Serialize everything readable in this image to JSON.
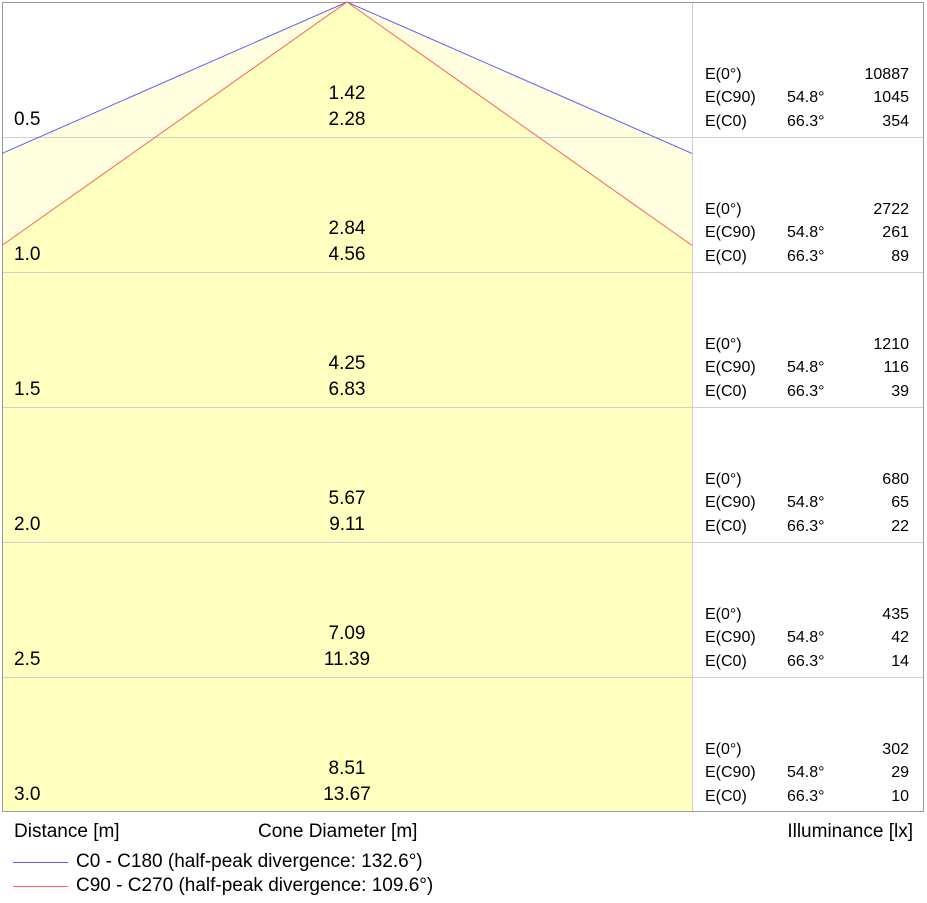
{
  "chart_data": {
    "type": "table",
    "beam_angle_deg": 54.8,
    "half_peak_angle_c0_deg": 66.3,
    "rows": [
      {
        "distance": "0.5",
        "cone_c90": "1.42",
        "cone_c0": "2.28",
        "e0": "10887",
        "ec90": "1045",
        "ec0": "354"
      },
      {
        "distance": "1.0",
        "cone_c90": "2.84",
        "cone_c0": "4.56",
        "e0": "2722",
        "ec90": "261",
        "ec0": "89"
      },
      {
        "distance": "1.5",
        "cone_c90": "4.25",
        "cone_c0": "6.83",
        "e0": "1210",
        "ec90": "116",
        "ec0": "39"
      },
      {
        "distance": "2.0",
        "cone_c90": "5.67",
        "cone_c0": "9.11",
        "e0": "680",
        "ec90": "65",
        "ec0": "22"
      },
      {
        "distance": "2.5",
        "cone_c90": "7.09",
        "cone_c0": "11.39",
        "e0": "435",
        "ec90": "42",
        "ec0": "14"
      },
      {
        "distance": "3.0",
        "cone_c90": "8.51",
        "cone_c0": "13.67",
        "e0": "302",
        "ec90": "29",
        "ec0": "10"
      }
    ],
    "row_labels": {
      "e0": "E(0°)",
      "ec90": "E(C90)",
      "ec0": "E(C0)"
    },
    "angle_c90": "54.8°",
    "angle_c0": "66.3°",
    "xlabel_distance": "Distance [m]",
    "xlabel_cone": "Cone Diameter [m]",
    "xlabel_illuminance": "Illuminance [lx]",
    "series": [
      {
        "name": "C0 - C180 (half-peak divergence: 132.6°)",
        "color": "#5b5bff",
        "divergence_deg": 132.6
      },
      {
        "name": "C90 - C270 (half-peak divergence: 109.6°)",
        "color": "#ff6060",
        "divergence_deg": 109.6
      }
    ],
    "colors": {
      "fill": "#ffffc0",
      "fill_light": "#ffffe0",
      "grid": "#cfcfcf",
      "border": "#9a9a9a"
    }
  }
}
